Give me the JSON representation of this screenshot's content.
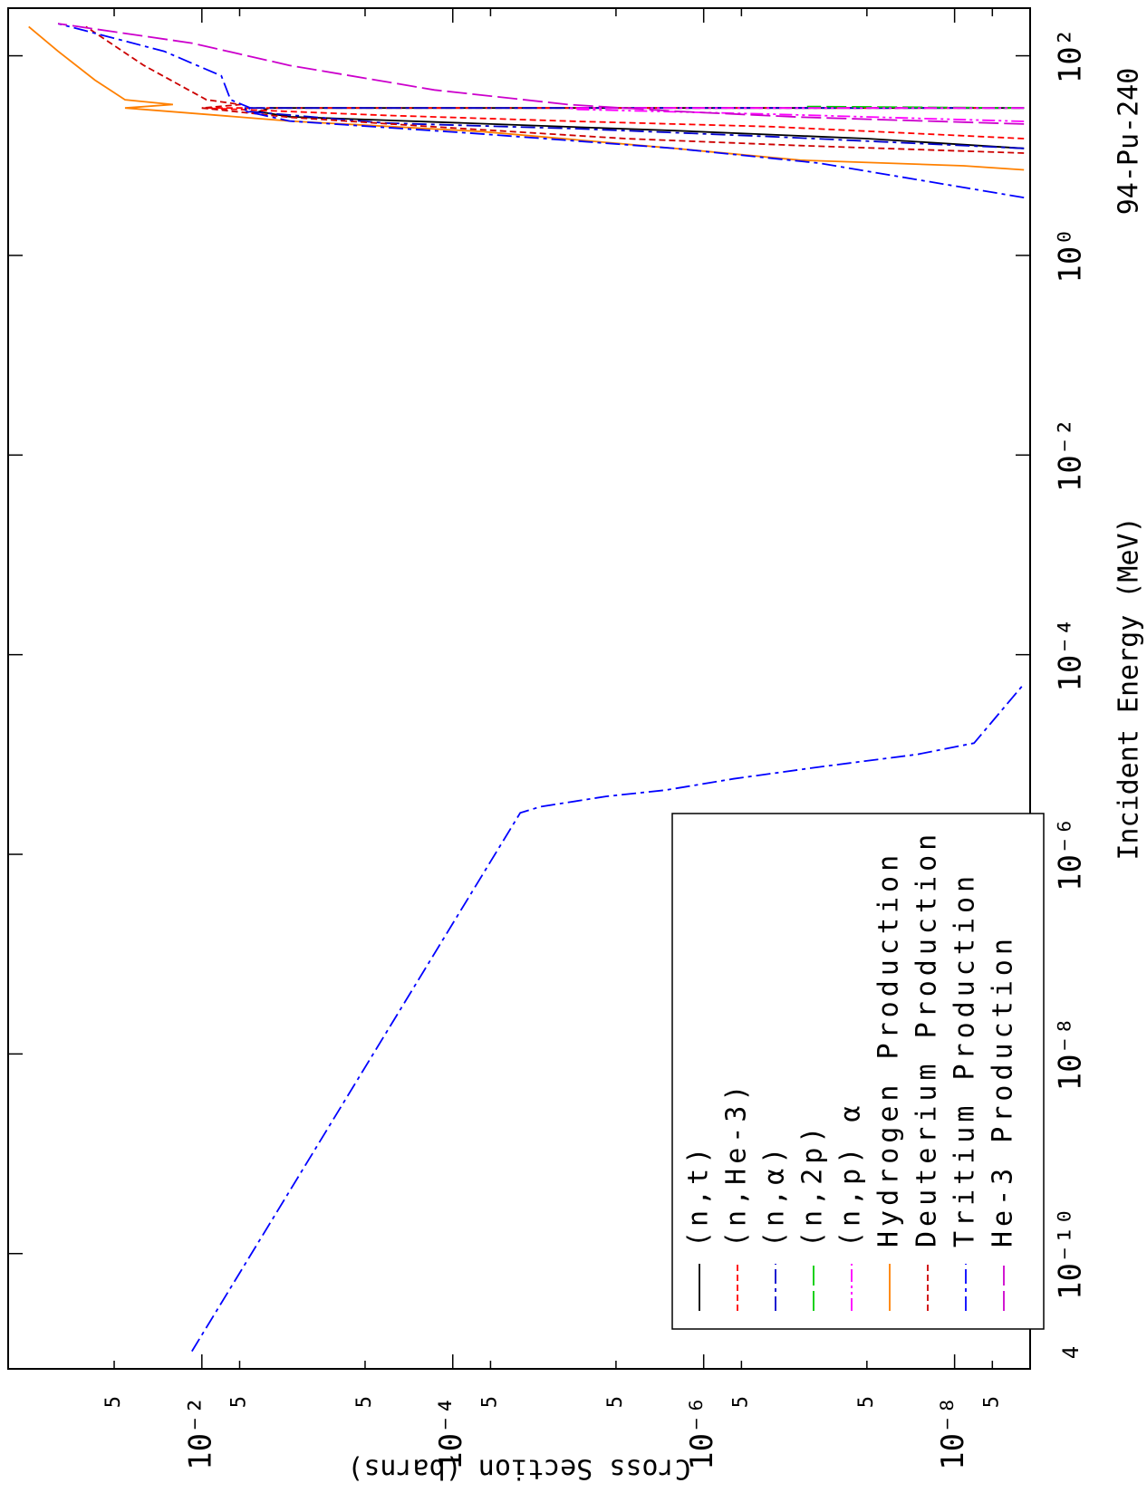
{
  "chart_data": {
    "type": "line",
    "title": "94-Pu-240",
    "x_label": "Incident Energy (MeV)",
    "y_label": "Cross Section (barns)",
    "corner_label": "4",
    "xscale": "log",
    "yscale": "log",
    "xlim": [
      7e-12,
      300
    ],
    "ylim": [
      2.5e-09,
      0.35
    ],
    "xticks": [
      {
        "value": 1e-10,
        "label": "10⁻¹⁰"
      },
      {
        "value": 1e-08,
        "label": "10⁻⁸"
      },
      {
        "value": 1e-06,
        "label": "10⁻⁶"
      },
      {
        "value": 0.0001,
        "label": "10⁻⁴"
      },
      {
        "value": 0.01,
        "label": "10⁻²"
      },
      {
        "value": 1,
        "label": "10⁰"
      },
      {
        "value": 100,
        "label": "10²"
      }
    ],
    "yticks": [
      {
        "value": 0.05,
        "label": "5"
      },
      {
        "value": 0.01,
        "label": "10⁻²"
      },
      {
        "value": 0.005,
        "label": "5"
      },
      {
        "value": 0.0005,
        "label": "5"
      },
      {
        "value": 0.0001,
        "label": "10⁻⁴"
      },
      {
        "value": 5e-05,
        "label": "5"
      },
      {
        "value": 5e-06,
        "label": "5"
      },
      {
        "value": 1e-06,
        "label": "10⁻⁶"
      },
      {
        "value": 5e-07,
        "label": "5"
      },
      {
        "value": 5e-08,
        "label": "5"
      },
      {
        "value": 1e-08,
        "label": "10⁻⁸"
      },
      {
        "value": 5e-09,
        "label": "5"
      }
    ],
    "legend": "upper left",
    "series": [
      {
        "name": "(n,t)",
        "color": "#000000",
        "dash": "solid",
        "x": [
          11.8,
          14.8,
          17.8,
          20.9,
          24.5,
          27.5,
          30,
          30
        ],
        "values": [
          2.8e-09,
          5e-08,
          1.7e-06,
          5.9e-05,
          0.002,
          0.0035,
          0.0029,
          2.8e-09
        ]
      },
      {
        "name": "(n,He-3)",
        "color": "#ff0000",
        "dash": "dashed",
        "x": [
          14.8,
          19.5,
          22,
          25.3,
          30,
          30
        ],
        "values": [
          2.8e-09,
          2.9e-07,
          1e-05,
          0.00035,
          0.01,
          2.8e-09
        ]
      },
      {
        "name": "(n,α)",
        "color": "#0000cc",
        "dash": "dashdot",
        "x": [
          11.8,
          15.5,
          18.6,
          21.2,
          27.8,
          30,
          30
        ],
        "values": [
          2.8e-09,
          2.9e-07,
          1e-05,
          0.00035,
          0.0045,
          0.0045,
          2.8e-09
        ]
      },
      {
        "name": "(n,2p)",
        "color": "#00cc00",
        "dash": "longdash",
        "x": [
          30,
          31
        ],
        "values": [
          2.8e-09,
          1.5e-07
        ]
      },
      {
        "name": "(n,p) α",
        "color": "#ff00ff",
        "dash": "dashdotdot",
        "x": [
          22,
          26,
          29,
          30,
          30
        ],
        "values": [
          2.8e-09,
          2.9e-07,
          1e-05,
          1.2e-05,
          2.8e-09
        ]
      },
      {
        "name": "Hydrogen Production",
        "color": "#ff8000",
        "dash": "solid",
        "x": [
          7.2,
          7.9,
          9,
          11.8,
          17.4,
          22.2,
          29,
          30,
          32.5,
          36.3,
          57,
          111,
          196
        ],
        "values": [
          2.8e-09,
          8.5e-09,
          1.7e-07,
          1.7e-06,
          5.9e-05,
          0.002,
          0.029,
          0.041,
          0.017,
          0.041,
          0.071,
          0.14,
          0.24
        ]
      },
      {
        "name": "Deuterium Production",
        "color": "#cc0000",
        "dash": "dashed",
        "x": [
          10.6,
          12.6,
          14.8,
          19.4,
          24.2,
          30,
          32.5,
          36.3,
          80,
          196
        ],
        "values": [
          2.8e-09,
          1.7e-07,
          4.2e-06,
          0.00014,
          0.002,
          0.01,
          0.0049,
          0.0092,
          0.029,
          0.084
        ]
      },
      {
        "name": "Tritium Production",
        "color": "#0000ff",
        "dash": "dashdot",
        "x": [
          1.05e-11,
          2.6e-06,
          3e-06,
          3.8e-06,
          4.4e-06,
          5.7e-06,
          7.5e-06,
          1e-05,
          1.3e-05,
          5.1e-05,
          null,
          3.8,
          4.8,
          8.4,
          11.8,
          16.5,
          22.2,
          27.8,
          30,
          36.3,
          63,
          111,
          210
        ],
        "values": [
          0.012,
          2.9e-05,
          2e-05,
          6e-06,
          2e-06,
          5.8e-07,
          1.2e-07,
          2e-08,
          7e-09,
          2.8e-09,
          null,
          2.8e-09,
          8.5e-09,
          1.2e-07,
          1.7e-06,
          5.9e-05,
          0.002,
          0.0045,
          0.0041,
          0.0059,
          0.007,
          0.02,
          0.14
        ]
      },
      {
        "name": "He-3 Production",
        "color": "#cc00cc",
        "dash": "longdash",
        "x": [
          20.7,
          24.3,
          27.8,
          32.5,
          45.5,
          80,
          134,
          210
        ],
        "values": [
          2.8e-09,
          1.7e-07,
          1.7e-06,
          1.2e-05,
          0.00014,
          0.002,
          0.012,
          0.14
        ]
      }
    ]
  }
}
